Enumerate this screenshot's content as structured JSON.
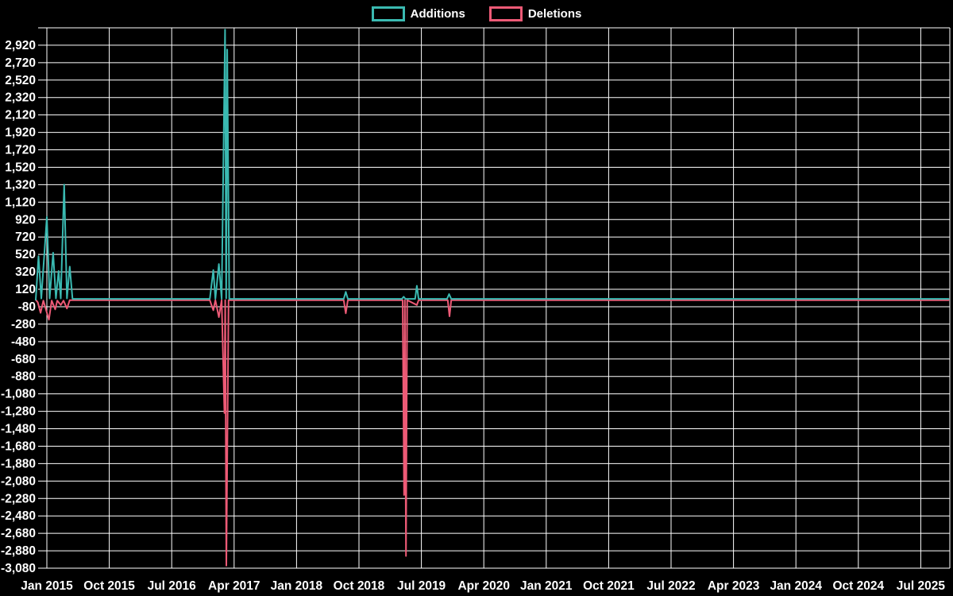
{
  "legend": {
    "items": [
      {
        "label": "Additions",
        "color": "#3ab9b1"
      },
      {
        "label": "Deletions",
        "color": "#ed5a76"
      }
    ]
  },
  "chart_data": {
    "type": "line",
    "title": "",
    "xlabel": "",
    "ylabel": "",
    "background_color": "#000000",
    "grid_color": "#ffffff",
    "text_color": "#ffffff",
    "grid": true,
    "legend_position": "top-center",
    "x_unit": "months since Jan 2015 (weekly git additions/deletions)",
    "x_range_months": [
      -1.6,
      130
    ],
    "x_tick_interval_months": 9,
    "x_tick_labels": [
      "Jan 2015",
      "Oct 2015",
      "Jul 2016",
      "Apr 2017",
      "Jan 2018",
      "Oct 2018",
      "Jul 2019",
      "Apr 2020",
      "Jan 2021",
      "Oct 2021",
      "Jul 2022",
      "Apr 2023",
      "Jan 2024",
      "Oct 2024",
      "Jul 2025"
    ],
    "ylim": [
      -3080,
      3120
    ],
    "y_tick_step": 200,
    "y_tick_labels": [
      "2,920",
      "2,720",
      "2,520",
      "2,320",
      "2,120",
      "1,920",
      "1,720",
      "1,520",
      "1,320",
      "1,120",
      "920",
      "720",
      "520",
      "320",
      "120",
      "-80",
      "-280",
      "-480",
      "-680",
      "-880",
      "-1,080",
      "-1,280",
      "-1,480",
      "-1,680",
      "-1,880",
      "-2,080",
      "-2,280",
      "-2,480",
      "-2,680",
      "-2,880",
      "-3,080"
    ],
    "y_tick_label_max_value": 2920,
    "series": [
      {
        "name": "Additions",
        "color": "#3ab9b1",
        "points": [
          [
            -1.6,
            0
          ],
          [
            -1.2,
            500
          ],
          [
            -0.8,
            15
          ],
          [
            0,
            950
          ],
          [
            0.4,
            15
          ],
          [
            0.9,
            540
          ],
          [
            1.3,
            15
          ],
          [
            1.7,
            330
          ],
          [
            2,
            15
          ],
          [
            2.5,
            1320
          ],
          [
            2.9,
            15
          ],
          [
            3.3,
            380
          ],
          [
            3.7,
            10
          ],
          [
            23.5,
            10
          ],
          [
            24,
            340
          ],
          [
            24.3,
            10
          ],
          [
            24.8,
            410
          ],
          [
            25.2,
            10
          ],
          [
            25.7,
            3100
          ],
          [
            25.85,
            15
          ],
          [
            26,
            2870
          ],
          [
            26.3,
            10
          ],
          [
            42.8,
            10
          ],
          [
            43.1,
            90
          ],
          [
            43.4,
            10
          ],
          [
            51.2,
            10
          ],
          [
            51.45,
            35
          ],
          [
            51.7,
            10
          ],
          [
            53.1,
            10
          ],
          [
            53.35,
            160
          ],
          [
            53.6,
            10
          ],
          [
            57.7,
            10
          ],
          [
            58,
            65
          ],
          [
            58.3,
            10
          ],
          [
            130,
            10
          ]
        ]
      },
      {
        "name": "Deletions",
        "color": "#ed5a76",
        "points": [
          [
            -1.6,
            0
          ],
          [
            -1.3,
            -30
          ],
          [
            -0.9,
            -150
          ],
          [
            -0.5,
            -10
          ],
          [
            0.3,
            -230
          ],
          [
            0.7,
            -10
          ],
          [
            1.2,
            -110
          ],
          [
            1.5,
            -10
          ],
          [
            2,
            -60
          ],
          [
            2.4,
            -10
          ],
          [
            2.9,
            -100
          ],
          [
            3.3,
            -5
          ],
          [
            23.5,
            -5
          ],
          [
            24,
            -120
          ],
          [
            24.3,
            -5
          ],
          [
            24.8,
            -200
          ],
          [
            25.2,
            -5
          ],
          [
            25.6,
            -1300
          ],
          [
            25.72,
            -5
          ],
          [
            25.88,
            -3050
          ],
          [
            26.2,
            -5
          ],
          [
            42.8,
            -5
          ],
          [
            43.1,
            -155
          ],
          [
            43.4,
            -5
          ],
          [
            51.3,
            -5
          ],
          [
            51.5,
            -2240
          ],
          [
            51.62,
            -5
          ],
          [
            51.78,
            -2940
          ],
          [
            51.95,
            -5
          ],
          [
            53.35,
            -60
          ],
          [
            53.6,
            -5
          ],
          [
            57.8,
            -5
          ],
          [
            58.05,
            -190
          ],
          [
            58.3,
            -5
          ],
          [
            130,
            -5
          ]
        ]
      }
    ]
  }
}
